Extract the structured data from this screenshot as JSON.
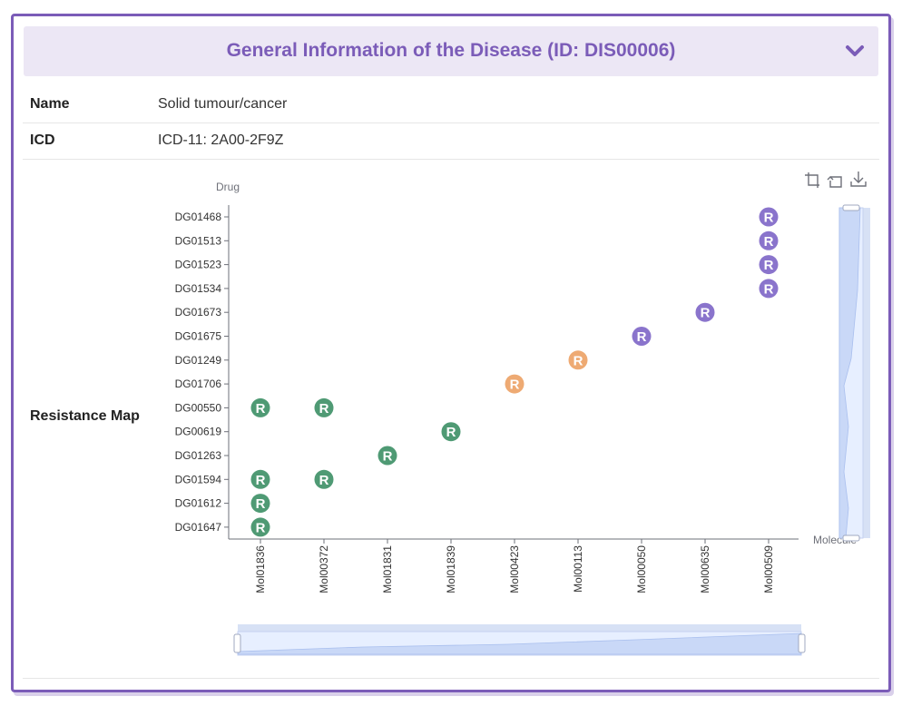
{
  "header": {
    "title": "General Information of the Disease (ID: DIS00006)"
  },
  "rows": [
    {
      "label": "Name",
      "value": "Solid tumour/cancer"
    },
    {
      "label": "ICD",
      "value": "ICD-11: 2A00-2F9Z"
    },
    {
      "label": "Resistance Map"
    }
  ],
  "toolbox": {
    "icons": [
      "zoom-icon",
      "restore-icon",
      "save-image-icon"
    ]
  },
  "chart_data": {
    "type": "scatter",
    "ylabel": "Drug",
    "xlabel": "Molecule",
    "marker_text": "R",
    "x_categories": [
      "Mol01836",
      "Mol00372",
      "Mol01831",
      "Mol01839",
      "Mol00423",
      "Mol00113",
      "Mol00050",
      "Mol00635",
      "Mol00509"
    ],
    "y_categories": [
      "DG01468",
      "DG01513",
      "DG01523",
      "DG01534",
      "DG01673",
      "DG01675",
      "DG01249",
      "DG01706",
      "DG00550",
      "DG00619",
      "DG01263",
      "DG01594",
      "DG01612",
      "DG01647"
    ],
    "colors": {
      "green": "#4f9a74",
      "orange": "#eeaa73",
      "purple": "#8a74cc"
    },
    "points": [
      {
        "x": "Mol00509",
        "y": "DG01468",
        "color": "purple"
      },
      {
        "x": "Mol00509",
        "y": "DG01513",
        "color": "purple"
      },
      {
        "x": "Mol00509",
        "y": "DG01523",
        "color": "purple"
      },
      {
        "x": "Mol00509",
        "y": "DG01534",
        "color": "purple"
      },
      {
        "x": "Mol00635",
        "y": "DG01673",
        "color": "purple"
      },
      {
        "x": "Mol00050",
        "y": "DG01675",
        "color": "purple"
      },
      {
        "x": "Mol00113",
        "y": "DG01249",
        "color": "orange"
      },
      {
        "x": "Mol00423",
        "y": "DG01706",
        "color": "orange"
      },
      {
        "x": "Mol01836",
        "y": "DG00550",
        "color": "green"
      },
      {
        "x": "Mol00372",
        "y": "DG00550",
        "color": "green"
      },
      {
        "x": "Mol01839",
        "y": "DG00619",
        "color": "green"
      },
      {
        "x": "Mol01831",
        "y": "DG01263",
        "color": "green"
      },
      {
        "x": "Mol01836",
        "y": "DG01594",
        "color": "green"
      },
      {
        "x": "Mol00372",
        "y": "DG01594",
        "color": "green"
      },
      {
        "x": "Mol01836",
        "y": "DG01612",
        "color": "green"
      },
      {
        "x": "Mol01836",
        "y": "DG01647",
        "color": "green"
      }
    ],
    "grid": false,
    "legend": "none",
    "zoom_slider_x": {
      "start": 0,
      "end": 1
    },
    "zoom_slider_y": {
      "start": 0,
      "end": 1
    }
  }
}
